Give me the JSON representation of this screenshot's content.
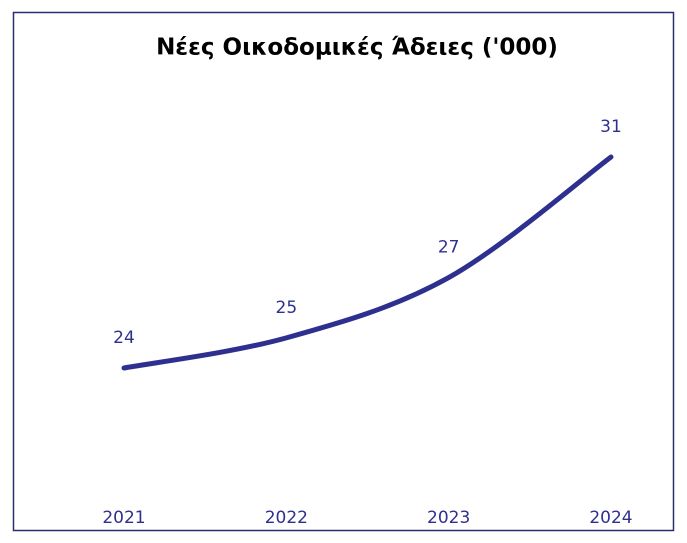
{
  "chart_data": {
    "type": "line",
    "title": "Νέες Οικοδομικές Άδειες ('000)",
    "categories": [
      "2021",
      "2022",
      "2023",
      "2024"
    ],
    "values": [
      24,
      25,
      27,
      31
    ],
    "color": "#2e3090"
  }
}
